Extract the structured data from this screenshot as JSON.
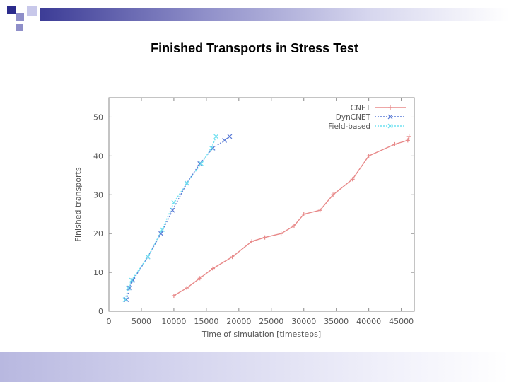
{
  "slide": {
    "title": "Finished Transports in Stress Test"
  },
  "colors": {
    "deco_dark": "#2b2b8c",
    "deco_mid": "#8f8fc9",
    "deco_light": "#c8c8ea",
    "cnet": "#e88a8a",
    "dyncnet": "#5a7bd6",
    "fieldbased": "#6fe0f0"
  },
  "chart_data": {
    "type": "line",
    "title": "",
    "xlabel": "Time of simulation [timesteps]",
    "ylabel": "Finished transports",
    "xlim": [
      0,
      47000
    ],
    "ylim": [
      0,
      55
    ],
    "xticks": [
      0,
      5000,
      10000,
      15000,
      20000,
      25000,
      30000,
      35000,
      40000,
      45000
    ],
    "yticks": [
      0,
      10,
      20,
      30,
      40,
      50
    ],
    "legend_position": "top-right",
    "series": [
      {
        "name": "CNET",
        "color": "#e88a8a",
        "marker": "+",
        "dash": "solid",
        "points": [
          [
            10000,
            4
          ],
          [
            12000,
            6
          ],
          [
            14000,
            8.5
          ],
          [
            16000,
            11
          ],
          [
            19000,
            14
          ],
          [
            22000,
            18
          ],
          [
            24000,
            19
          ],
          [
            26500,
            20
          ],
          [
            28500,
            22
          ],
          [
            30000,
            25
          ],
          [
            32500,
            26
          ],
          [
            34500,
            30
          ],
          [
            37500,
            34
          ],
          [
            40000,
            40
          ],
          [
            44000,
            43
          ],
          [
            46000,
            44
          ],
          [
            46200,
            45
          ]
        ]
      },
      {
        "name": "DynCNET",
        "color": "#5a7bd6",
        "marker": "x",
        "dash": "dotted",
        "points": [
          [
            2700,
            3
          ],
          [
            3200,
            6
          ],
          [
            3700,
            8
          ],
          [
            6000,
            14
          ],
          [
            8000,
            20
          ],
          [
            9800,
            26
          ],
          [
            12000,
            33
          ],
          [
            14000,
            38
          ],
          [
            16000,
            42
          ],
          [
            17800,
            44
          ],
          [
            18600,
            45
          ]
        ]
      },
      {
        "name": "Field-based",
        "color": "#6fe0f0",
        "marker": "x",
        "dash": "dotted",
        "points": [
          [
            2500,
            3
          ],
          [
            3000,
            6
          ],
          [
            3500,
            8
          ],
          [
            6000,
            14
          ],
          [
            8200,
            21
          ],
          [
            10000,
            28
          ],
          [
            12000,
            33
          ],
          [
            14200,
            38
          ],
          [
            15800,
            42
          ],
          [
            16500,
            45
          ]
        ]
      }
    ]
  }
}
